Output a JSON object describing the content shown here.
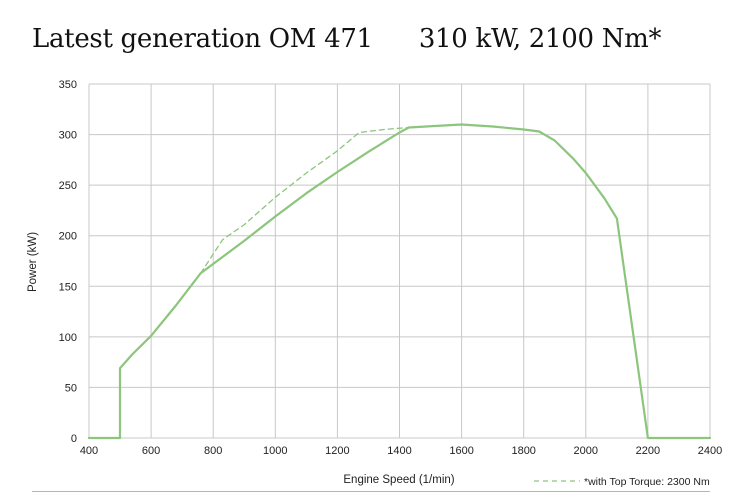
{
  "header": {
    "title": "Latest generation OM 471",
    "spec": "310 kW, 2100 Nm*"
  },
  "chart_data": {
    "type": "line",
    "title": "Latest generation OM 471",
    "subtitle": "310 kW, 2100 Nm*",
    "xlabel": "Engine Speed (1/min)",
    "ylabel": "Power (kW)",
    "xlim": [
      400,
      2400
    ],
    "ylim": [
      0,
      350
    ],
    "xticks": [
      400,
      600,
      800,
      1000,
      1200,
      1400,
      1600,
      1800,
      2000,
      2200,
      2400
    ],
    "yticks": [
      0,
      50,
      100,
      150,
      200,
      250,
      300,
      350
    ],
    "grid": true,
    "legend_position": "bottom-right",
    "series": [
      {
        "name": "",
        "style": "solid",
        "color": "#8cc57c",
        "points": [
          [
            400,
            0
          ],
          [
            500,
            0
          ],
          [
            500,
            69
          ],
          [
            540,
            83
          ],
          [
            600,
            101
          ],
          [
            680,
            131
          ],
          [
            760,
            163
          ],
          [
            900,
            195
          ],
          [
            1000,
            219
          ],
          [
            1100,
            242
          ],
          [
            1200,
            263
          ],
          [
            1300,
            283
          ],
          [
            1400,
            302
          ],
          [
            1430,
            307
          ],
          [
            1600,
            310
          ],
          [
            1700,
            308
          ],
          [
            1800,
            305
          ],
          [
            1850,
            303
          ],
          [
            1900,
            294
          ],
          [
            1960,
            276
          ],
          [
            2000,
            262
          ],
          [
            2060,
            237
          ],
          [
            2100,
            217
          ],
          [
            2200,
            0
          ],
          [
            2400,
            0
          ]
        ]
      },
      {
        "name": "*with Top Torque: 2300 Nm",
        "style": "dashed",
        "color": "#8cc57c",
        "points": [
          [
            760,
            163
          ],
          [
            830,
            196
          ],
          [
            900,
            211
          ],
          [
            1000,
            238
          ],
          [
            1100,
            262
          ],
          [
            1200,
            284
          ],
          [
            1270,
            302
          ],
          [
            1350,
            305
          ],
          [
            1430,
            307
          ]
        ]
      }
    ]
  }
}
